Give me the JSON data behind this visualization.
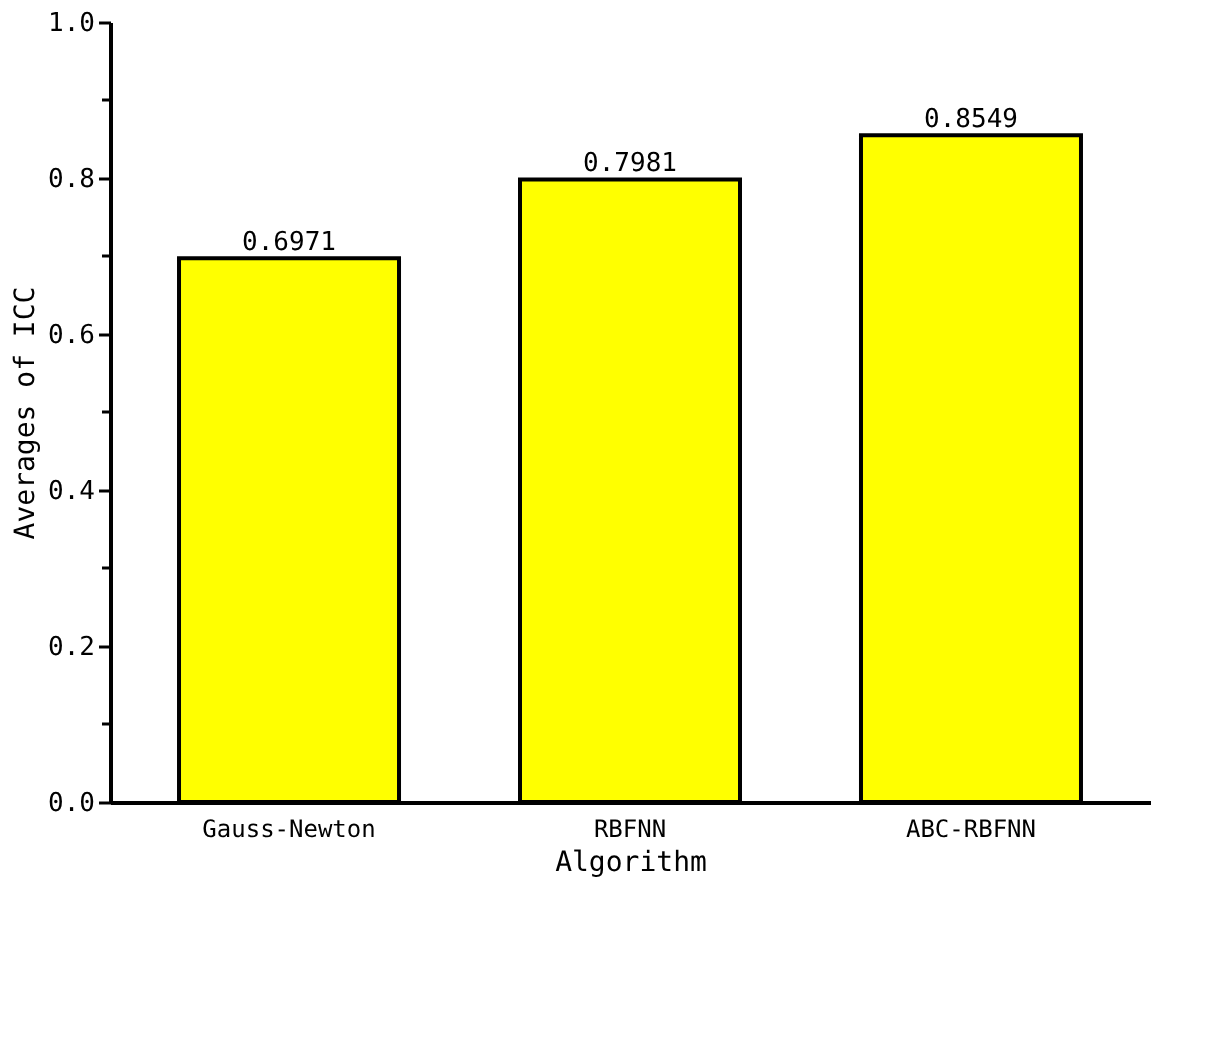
{
  "chart_data": {
    "type": "bar",
    "xlabel": "Algorithm",
    "ylabel": "Averages of ICC",
    "categories": [
      "Gauss-Newton",
      "RBFNN",
      "ABC-RBFNN"
    ],
    "values": [
      0.6971,
      0.7981,
      0.8549
    ],
    "color": "#ffff00",
    "ylim": [
      0,
      1
    ],
    "yticks": [
      {
        "value": 0,
        "label": "0.0"
      },
      {
        "value": 0.1,
        "label": null
      },
      0.2,
      {
        "value": 0.3,
        "label": null
      },
      0.4,
      {
        "value": 0.5,
        "label": null
      },
      0.6,
      {
        "value": 0.7,
        "label": null
      },
      0.8,
      {
        "value": 0.9,
        "label": null
      },
      {
        "value": 1,
        "label": "1.0"
      }
    ],
    "data_labels": true,
    "grid": false
  }
}
